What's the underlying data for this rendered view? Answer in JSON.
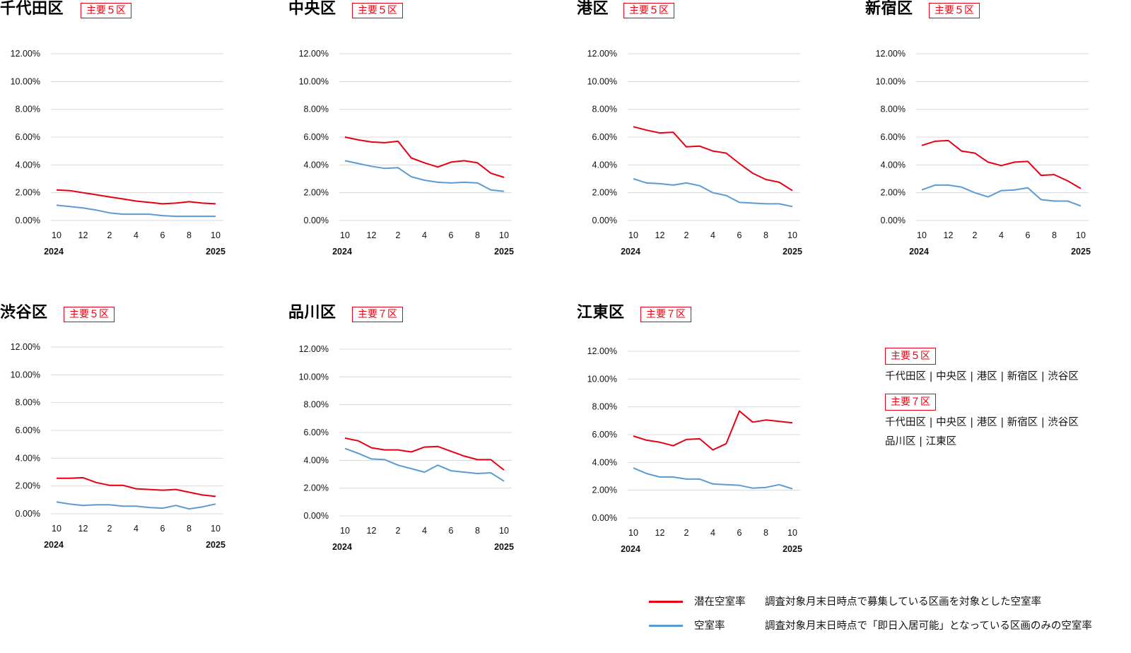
{
  "colors": {
    "potential": "#e60012",
    "vacancy": "#5b9bd5",
    "badge": "#e60012"
  },
  "chart_data": [
    {
      "type": "line",
      "title": "千代田区",
      "badge": "主要５区",
      "x": [
        "2024-10",
        "2024-11",
        "2024-12",
        "2025-01",
        "2025-02",
        "2025-03",
        "2025-04",
        "2025-05",
        "2025-06",
        "2025-07",
        "2025-08",
        "2025-09",
        "2025-10"
      ],
      "x_tick_labels": [
        "10",
        "12",
        "2",
        "4",
        "6",
        "8",
        "10"
      ],
      "x_start_label": "2024",
      "x_end_label": "2025",
      "y_tick_labels": [
        "12.00%",
        "10.00%",
        "8.00%",
        "6.00%",
        "4.00%",
        "2.00%",
        "0.00%"
      ],
      "ylim": [
        0,
        12
      ],
      "grid": true,
      "series": [
        {
          "name": "潜在空室率",
          "values": [
            2.2,
            2.15,
            2.0,
            1.85,
            1.7,
            1.55,
            1.4,
            1.3,
            1.2,
            1.25,
            1.35,
            1.25,
            1.2
          ]
        },
        {
          "name": "空室率",
          "values": [
            1.1,
            1.0,
            0.9,
            0.75,
            0.55,
            0.45,
            0.45,
            0.45,
            0.35,
            0.3,
            0.3,
            0.3,
            0.3
          ]
        }
      ]
    },
    {
      "type": "line",
      "title": "中央区",
      "badge": "主要５区",
      "x": [
        "2024-10",
        "2024-11",
        "2024-12",
        "2025-01",
        "2025-02",
        "2025-03",
        "2025-04",
        "2025-05",
        "2025-06",
        "2025-07",
        "2025-08",
        "2025-09",
        "2025-10"
      ],
      "x_tick_labels": [
        "10",
        "12",
        "2",
        "4",
        "6",
        "8",
        "10"
      ],
      "x_start_label": "2024",
      "x_end_label": "2025",
      "y_tick_labels": [
        "12.00%",
        "10.00%",
        "8.00%",
        "6.00%",
        "4.00%",
        "2.00%",
        "0.00%"
      ],
      "ylim": [
        0,
        12
      ],
      "grid": true,
      "series": [
        {
          "name": "潜在空室率",
          "values": [
            6.0,
            5.8,
            5.65,
            5.6,
            5.7,
            4.5,
            4.15,
            3.85,
            4.2,
            4.3,
            4.15,
            3.4,
            3.1
          ]
        },
        {
          "name": "空室率",
          "values": [
            4.3,
            4.1,
            3.9,
            3.75,
            3.8,
            3.15,
            2.9,
            2.75,
            2.7,
            2.75,
            2.7,
            2.2,
            2.1
          ]
        }
      ]
    },
    {
      "type": "line",
      "title": "港区",
      "badge": "主要５区",
      "x": [
        "2024-10",
        "2024-11",
        "2024-12",
        "2025-01",
        "2025-02",
        "2025-03",
        "2025-04",
        "2025-05",
        "2025-06",
        "2025-07",
        "2025-08",
        "2025-09",
        "2025-10"
      ],
      "x_tick_labels": [
        "10",
        "12",
        "2",
        "4",
        "6",
        "8",
        "10"
      ],
      "x_start_label": "2024",
      "x_end_label": "2025",
      "y_tick_labels": [
        "12.00%",
        "10.00%",
        "8.00%",
        "6.00%",
        "4.00%",
        "2.00%",
        "0.00%"
      ],
      "ylim": [
        0,
        12
      ],
      "grid": true,
      "series": [
        {
          "name": "潜在空室率",
          "values": [
            6.75,
            6.5,
            6.3,
            6.35,
            5.3,
            5.35,
            5.0,
            4.85,
            4.1,
            3.4,
            2.95,
            2.75,
            2.15
          ]
        },
        {
          "name": "空室率",
          "values": [
            3.0,
            2.7,
            2.65,
            2.55,
            2.7,
            2.5,
            2.0,
            1.8,
            1.3,
            1.25,
            1.2,
            1.2,
            1.0
          ]
        }
      ]
    },
    {
      "type": "line",
      "title": "新宿区",
      "badge": "主要５区",
      "x": [
        "2024-10",
        "2024-11",
        "2024-12",
        "2025-01",
        "2025-02",
        "2025-03",
        "2025-04",
        "2025-05",
        "2025-06",
        "2025-07",
        "2025-08",
        "2025-09",
        "2025-10"
      ],
      "x_tick_labels": [
        "10",
        "12",
        "2",
        "4",
        "6",
        "8",
        "10"
      ],
      "x_start_label": "2024",
      "x_end_label": "2025",
      "y_tick_labels": [
        "12.00%",
        "10.00%",
        "8.00%",
        "6.00%",
        "4.00%",
        "2.00%",
        "0.00%"
      ],
      "ylim": [
        0,
        12
      ],
      "grid": true,
      "series": [
        {
          "name": "潜在空室率",
          "values": [
            5.4,
            5.7,
            5.75,
            5.0,
            4.85,
            4.2,
            3.95,
            4.2,
            4.25,
            3.25,
            3.3,
            2.85,
            2.3
          ]
        },
        {
          "name": "空室率",
          "values": [
            2.2,
            2.55,
            2.55,
            2.4,
            2.0,
            1.7,
            2.15,
            2.2,
            2.35,
            1.5,
            1.4,
            1.4,
            1.05
          ]
        }
      ]
    },
    {
      "type": "line",
      "title": "渋谷区",
      "badge": "主要５区",
      "x": [
        "2024-10",
        "2024-11",
        "2024-12",
        "2025-01",
        "2025-02",
        "2025-03",
        "2025-04",
        "2025-05",
        "2025-06",
        "2025-07",
        "2025-08",
        "2025-09",
        "2025-10"
      ],
      "x_tick_labels": [
        "10",
        "12",
        "2",
        "4",
        "6",
        "8",
        "10"
      ],
      "x_start_label": "2024",
      "x_end_label": "2025",
      "y_tick_labels": [
        "12.00%",
        "10.00%",
        "8.00%",
        "6.00%",
        "4.00%",
        "2.00%",
        "0.00%"
      ],
      "ylim": [
        0,
        12
      ],
      "grid": true,
      "series": [
        {
          "name": "潜在空室率",
          "values": [
            2.55,
            2.55,
            2.6,
            2.25,
            2.05,
            2.05,
            1.8,
            1.75,
            1.7,
            1.75,
            1.55,
            1.35,
            1.25
          ]
        },
        {
          "name": "空室率",
          "values": [
            0.85,
            0.7,
            0.6,
            0.65,
            0.65,
            0.55,
            0.55,
            0.45,
            0.4,
            0.6,
            0.35,
            0.5,
            0.7
          ]
        }
      ]
    },
    {
      "type": "line",
      "title": "品川区",
      "badge": "主要７区",
      "x": [
        "2024-10",
        "2024-11",
        "2024-12",
        "2025-01",
        "2025-02",
        "2025-03",
        "2025-04",
        "2025-05",
        "2025-06",
        "2025-07",
        "2025-08",
        "2025-09",
        "2025-10"
      ],
      "x_tick_labels": [
        "10",
        "12",
        "2",
        "4",
        "6",
        "8",
        "10"
      ],
      "x_start_label": "2024",
      "x_end_label": "2025",
      "y_tick_labels": [
        "12.00%",
        "10.00%",
        "8.00%",
        "6.00%",
        "4.00%",
        "2.00%",
        "0.00%"
      ],
      "ylim": [
        0,
        12
      ],
      "grid": true,
      "series": [
        {
          "name": "潜在空室率",
          "values": [
            5.6,
            5.4,
            4.9,
            4.75,
            4.75,
            4.6,
            4.95,
            5.0,
            4.65,
            4.3,
            4.05,
            4.05,
            3.3
          ]
        },
        {
          "name": "空室率",
          "values": [
            4.85,
            4.5,
            4.1,
            4.05,
            3.65,
            3.4,
            3.15,
            3.65,
            3.25,
            3.15,
            3.05,
            3.1,
            2.5
          ]
        }
      ]
    },
    {
      "type": "line",
      "title": "江東区",
      "badge": "主要７区",
      "x": [
        "2024-10",
        "2024-11",
        "2024-12",
        "2025-01",
        "2025-02",
        "2025-03",
        "2025-04",
        "2025-05",
        "2025-06",
        "2025-07",
        "2025-08",
        "2025-09",
        "2025-10"
      ],
      "x_tick_labels": [
        "10",
        "12",
        "2",
        "4",
        "6",
        "8",
        "10"
      ],
      "x_start_label": "2024",
      "x_end_label": "2025",
      "y_tick_labels": [
        "12.00%",
        "10.00%",
        "8.00%",
        "6.00%",
        "4.00%",
        "2.00%",
        "0.00%"
      ],
      "ylim": [
        0,
        12
      ],
      "grid": true,
      "series": [
        {
          "name": "潜在空室率",
          "values": [
            5.9,
            5.6,
            5.45,
            5.2,
            5.65,
            5.7,
            4.9,
            5.35,
            7.7,
            6.9,
            7.05,
            6.95,
            6.85
          ]
        },
        {
          "name": "空室率",
          "values": [
            3.6,
            3.2,
            2.95,
            2.95,
            2.8,
            2.8,
            2.45,
            2.4,
            2.35,
            2.15,
            2.2,
            2.4,
            2.1
          ]
        }
      ]
    }
  ],
  "groups": [
    {
      "badge": "主要５区",
      "list": "千代田区 | 中央区 | 港区 | 新宿区 | 渋谷区"
    },
    {
      "badge": "主要７区",
      "list": "千代田区 | 中央区 | 港区 | 新宿区 | 渋谷区\n品川区 | 江東区"
    }
  ],
  "legend": [
    {
      "name": "潜在空室率",
      "description": "調査対象月末日時点で募集している区画を対象とした空室率"
    },
    {
      "name": "空室率",
      "description": "調査対象月末日時点で「即日入居可能」となっている区画のみの空室率"
    }
  ]
}
